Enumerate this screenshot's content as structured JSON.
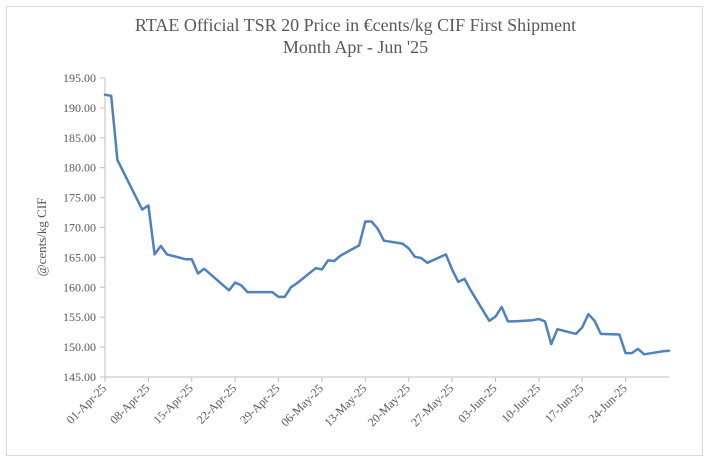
{
  "chart_data": {
    "type": "line",
    "title_line1": "RTAE Official TSR 20 Price in €cents/kg CIF First Shipment",
    "title_line2": "Month Apr - Jun '25",
    "xlabel": "",
    "ylabel": "@cents/kg CIF",
    "ylim": [
      145,
      195
    ],
    "yticks": [
      "145.00",
      "150.00",
      "155.00",
      "160.00",
      "165.00",
      "170.00",
      "175.00",
      "180.00",
      "185.00",
      "190.00",
      "195.00"
    ],
    "xticks": [
      "01-Apr-25",
      "08-Apr-25",
      "15-Apr-25",
      "22-Apr-25",
      "29-Apr-25",
      "06-May-25",
      "13-May-25",
      "20-May-25",
      "27-May-25",
      "03-Jun-25",
      "10-Jun-25",
      "17-Jun-25",
      "24-Jun-25"
    ],
    "grid": false,
    "line_color": "#4f81bd",
    "series": [
      {
        "x": [
          0,
          1,
          2,
          6,
          7,
          8,
          9,
          10,
          13,
          14,
          15,
          16,
          20,
          21,
          22,
          23,
          24,
          27,
          28,
          29,
          30,
          31,
          34,
          35,
          36,
          37,
          38,
          41,
          42,
          43,
          44,
          45,
          48,
          49,
          50,
          51,
          52,
          55,
          56,
          57,
          58,
          59,
          62,
          63,
          64,
          65,
          66,
          69,
          70,
          71,
          72,
          73,
          76,
          77,
          78,
          79,
          80,
          83,
          84,
          85,
          86,
          87,
          90,
          91
        ],
        "values": [
          192.2,
          192.0,
          181.3,
          173.0,
          173.7,
          165.5,
          166.9,
          165.5,
          164.7,
          164.7,
          162.3,
          163.1,
          159.5,
          160.8,
          160.3,
          159.2,
          159.2,
          159.2,
          158.4,
          158.4,
          160.0,
          160.7,
          163.2,
          163.0,
          164.5,
          164.4,
          165.3,
          167.0,
          171.0,
          171.0,
          169.8,
          167.8,
          167.3,
          166.5,
          165.1,
          164.9,
          164.1,
          165.5,
          163.0,
          160.9,
          161.4,
          159.5,
          154.4,
          155.1,
          156.7,
          154.3,
          154.3,
          154.5,
          154.7,
          154.3,
          150.5,
          153.0,
          152.2,
          153.3,
          155.5,
          154.4,
          152.2,
          152.1,
          149.0,
          149.0,
          149.7,
          148.8,
          149.3,
          149.4
        ]
      }
    ]
  }
}
